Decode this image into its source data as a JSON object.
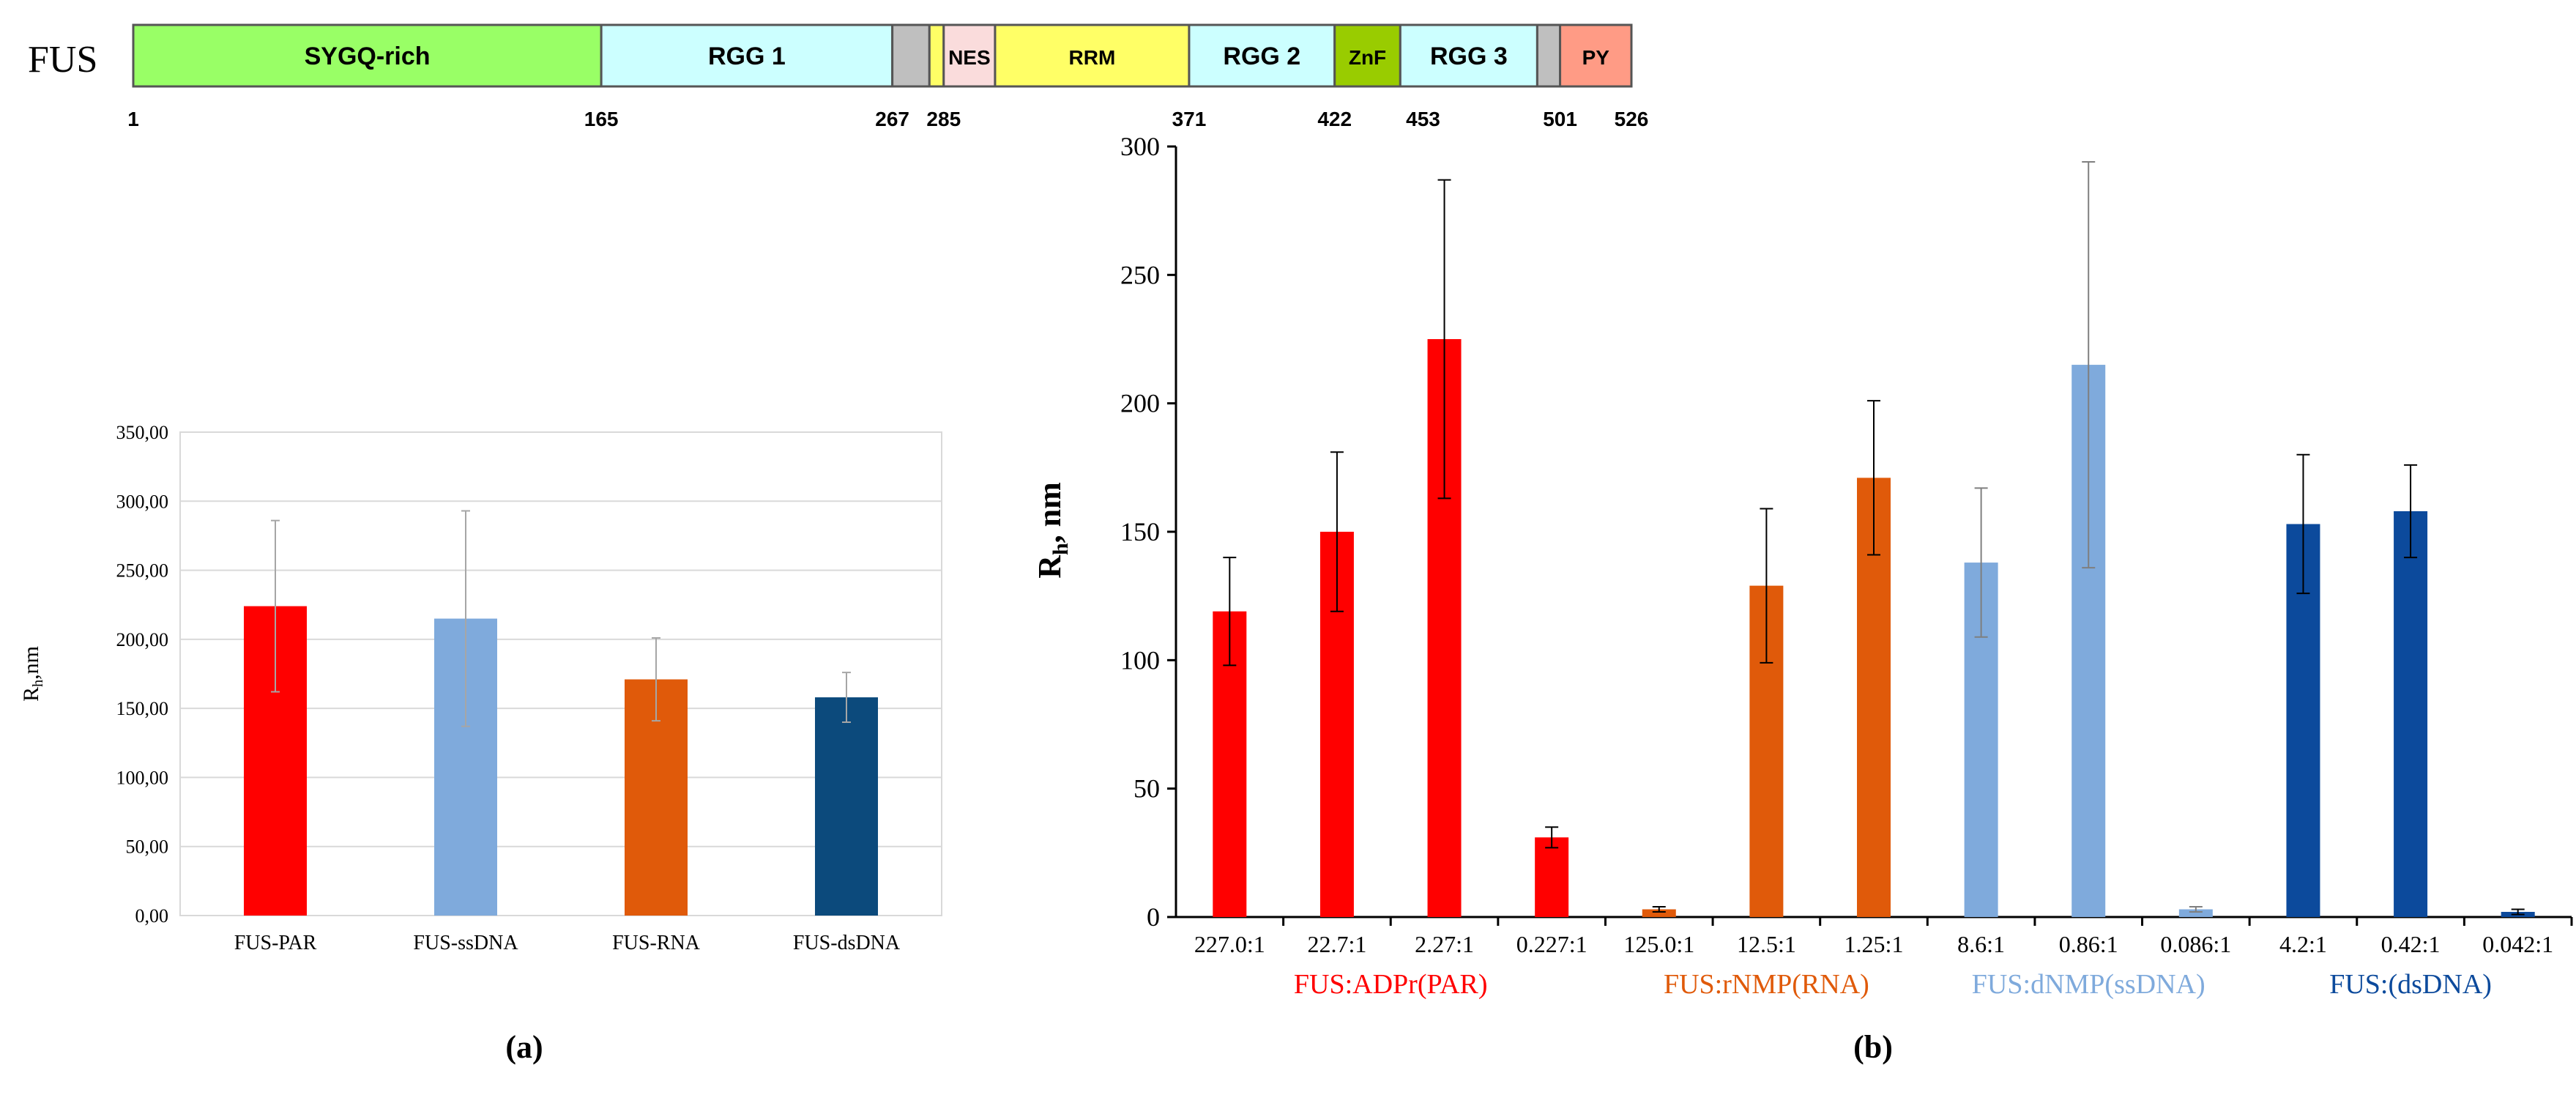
{
  "domain_label": {
    "protein": "FUS",
    "domains": [
      {
        "label": "SYGQ-rich",
        "start": 1,
        "end": 165,
        "color": "#99ff66"
      },
      {
        "label": "RGG 1",
        "start": 165,
        "end": 267,
        "color": "#ccffff"
      },
      {
        "label": "",
        "start": 267,
        "end": 280,
        "color": "#bfbfbf"
      },
      {
        "label": "",
        "start": 280,
        "end": 285,
        "color": "#ffff66"
      },
      {
        "label": "NES",
        "start": 285,
        "end": 303,
        "color": "#fadcdc"
      },
      {
        "label": "RRM",
        "start": 303,
        "end": 371,
        "color": "#ffff66"
      },
      {
        "label": "RGG 2",
        "start": 371,
        "end": 422,
        "color": "#ccffff"
      },
      {
        "label": "ZnF",
        "start": 422,
        "end": 445,
        "color": "#99cc00"
      },
      {
        "label": "RGG 3",
        "start": 445,
        "end": 493,
        "color": "#ccffff"
      },
      {
        "label": "",
        "start": 493,
        "end": 501,
        "color": "#bfbfbf"
      },
      {
        "label": "PY",
        "start": 501,
        "end": 526,
        "color": "#ff9b85"
      }
    ],
    "positions": [
      "1",
      "165",
      "267",
      "285",
      "371",
      "422",
      "453",
      "501",
      "526"
    ]
  },
  "chart_data": [
    {
      "type": "bar",
      "panel": "(a)",
      "categories": [
        "FUS-PAR",
        "FUS-ssDNA",
        "FUS-RNA",
        "FUS-dsDNA"
      ],
      "values": [
        224,
        215,
        171,
        158
      ],
      "errors": [
        62,
        78,
        30,
        18
      ],
      "colors": [
        "#ff0000",
        "#7faadc",
        "#e05a0a",
        "#0c4a7c"
      ],
      "ylabel_main": "R",
      "ylabel_sub": "h",
      "ylabel_unit": ",nm",
      "ylim": [
        0,
        350
      ],
      "yticks": [
        "0,00",
        "50,00",
        "100,00",
        "150,00",
        "200,00",
        "250,00",
        "300,00",
        "350,00"
      ],
      "grid": true
    },
    {
      "type": "bar",
      "panel": "(b)",
      "categories": [
        "227.0:1",
        "22.7:1",
        "2.27:1",
        "0.227:1",
        "125.0:1",
        "12.5:1",
        "1.25:1",
        "8.6:1",
        "0.86:1",
        "0.086:1",
        "4.2:1",
        "0.42:1",
        "0.042:1"
      ],
      "values": [
        119,
        150,
        225,
        31,
        3,
        129,
        171,
        138,
        215,
        3,
        153,
        158,
        2
      ],
      "errors": [
        21,
        31,
        62,
        4,
        1,
        30,
        30,
        29,
        79,
        1,
        27,
        18,
        1
      ],
      "colors": [
        "#ff0000",
        "#ff0000",
        "#ff0000",
        "#ff0000",
        "#e05a0a",
        "#e05a0a",
        "#e05a0a",
        "#7faadc",
        "#7faadc",
        "#7faadc",
        "#0c4a9c",
        "#0c4a9c",
        "#0c4a9c"
      ],
      "groups": [
        {
          "label": "FUS:ADPr(PAR)",
          "start": 0,
          "end": 3,
          "color": "#ff0000"
        },
        {
          "label": "FUS:rNMP(RNA)",
          "start": 4,
          "end": 6,
          "color": "#e05a0a"
        },
        {
          "label": "FUS:dNMP(ssDNA)",
          "start": 7,
          "end": 9,
          "color": "#7faadc"
        },
        {
          "label": "FUS:(dsDNA)",
          "start": 10,
          "end": 12,
          "color": "#0c4a9c"
        }
      ],
      "ylabel_main": "R",
      "ylabel_sub": "h",
      "ylabel_unit": ", nm",
      "ylim": [
        0,
        300
      ],
      "yticks": [
        "0",
        "50",
        "100",
        "150",
        "200",
        "250",
        "300"
      ],
      "grid": false
    }
  ]
}
